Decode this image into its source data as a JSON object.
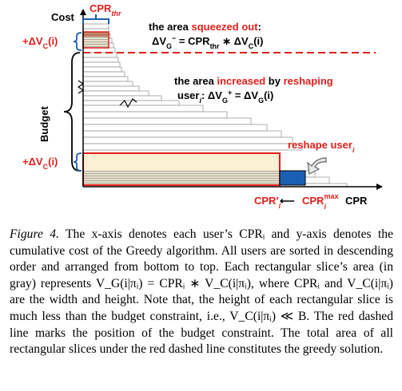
{
  "diagram": {
    "y_axis_label": "Cost",
    "budget_label": "Budget",
    "delta_vc_label": "+ΔV",
    "delta_vc_sub": "C",
    "delta_vc_tail": "(i)",
    "cpr_thr_label": "CPR",
    "cpr_thr_sub": "thr",
    "squeezed_line1_pre": "the area ",
    "squeezed_line1_hl": "squeezed out",
    "squeezed_line1_post": ":",
    "squeezed_line2": "ΔV",
    "squeezed_line2_sub": "G",
    "squeezed_line2_sup": "−",
    "squeezed_line2_rest": " = CPR",
    "squeezed_line2_sub2": "thr",
    "squeezed_line2_tail": " ∗ ΔV",
    "squeezed_line2_sub3": "C",
    "squeezed_line2_end": "(i)",
    "increased_line1_pre": "the area ",
    "increased_line1_hl1": "increased",
    "increased_line1_mid": " by ",
    "increased_line1_hl2": "reshaping",
    "increased_line2_pre": "user",
    "increased_line2_sub": "i",
    "increased_line2_mid": ": ΔV",
    "increased_line2_sub2": "G",
    "increased_line2_sup": "+",
    "increased_line2_rest": " = ΔV",
    "increased_line2_sub3": "G",
    "increased_line2_end": "(i)",
    "reshape_label": "reshape user",
    "reshape_sub": "i",
    "cpr_prime": "CPR′",
    "cpr_prime_sub": "i",
    "arrow_glyph": "⟵",
    "cpr_max": "CPR",
    "cpr_max_sup": "max",
    "cpr_max_sub": "i",
    "x_axis_label": "CPR",
    "colors": {
      "red": "#e0201c",
      "blue": "#1a5fb4",
      "fill": "#fbf0d4",
      "gray": "#9a9a9a"
    }
  },
  "caption": {
    "figure_label": "Figure 4.",
    "text": " The x-axis denotes each user’s CPRᵢ and y-axis denotes the cumulative cost of the Greedy algorithm. All users are sorted in descending order and arranged from bottom to top. Each rectangular slice’s area (in gray) represents V_G(i|πᵢ) = CPRᵢ ∗ V_C(i|πᵢ), where CPRᵢ and V_C(i|πᵢ) are the width and height. Note that, the height of each rectangular slice is much less than the budget constraint, i.e., V_C(i|πᵢ) ≪ B. The red dashed line marks the position of the budget constraint. The total area of all rectangular slices under the red dashed line constitutes the greedy solution."
  }
}
